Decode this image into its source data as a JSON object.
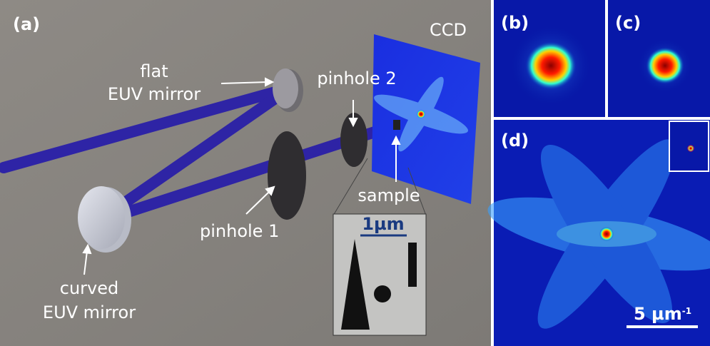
{
  "panels": {
    "a": "(a)",
    "b": "(b)",
    "c": "(c)",
    "d": "(d)"
  },
  "labels": {
    "flat_mirror": [
      "flat",
      "EUV mirror"
    ],
    "pinhole_2": "pinhole 2",
    "ccd": "CCD",
    "pinhole_1": "pinhole 1",
    "sample": "sample",
    "curved_mirror": [
      "curved",
      "EUV mirror"
    ]
  },
  "inset_scale": "1µm",
  "scale_bar": {
    "text": "5 µm",
    "superscript": "-1"
  }
}
